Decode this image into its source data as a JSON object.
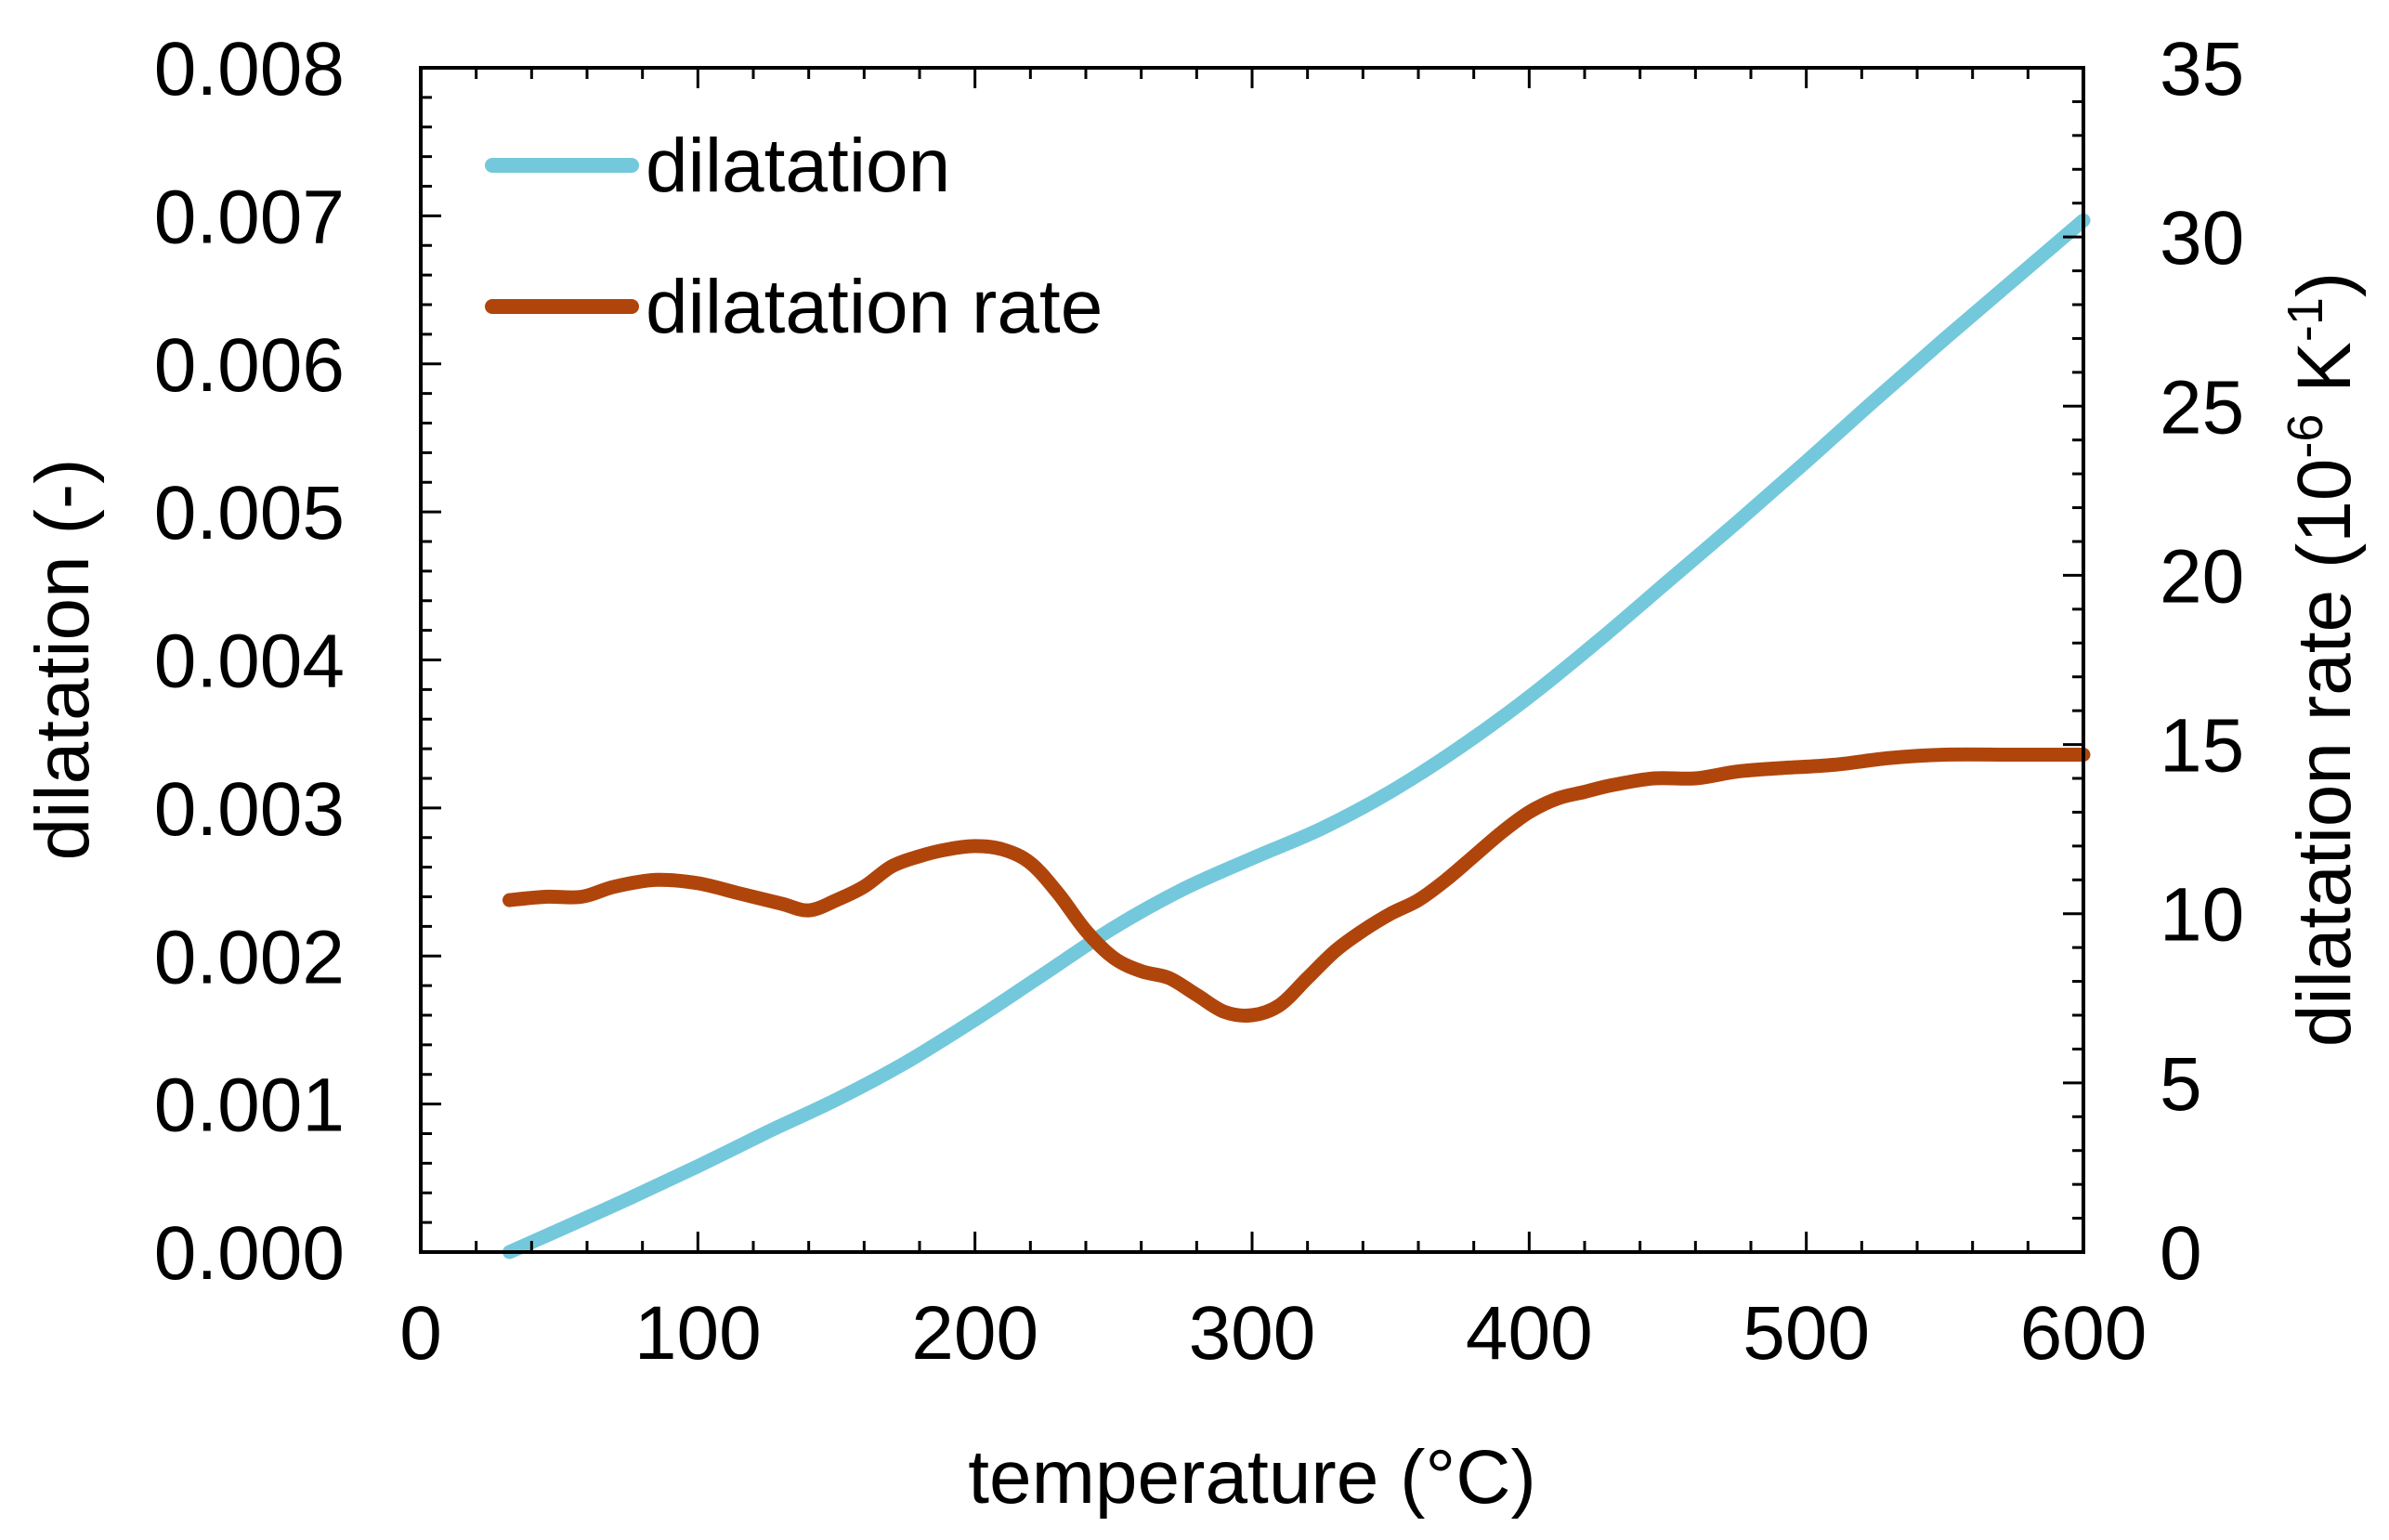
{
  "chart_data": {
    "type": "line",
    "title": "",
    "xlabel": "temperature (°C)",
    "ylabel_left": "dilatation (-)",
    "ylabel_right_base": "dilatation rate (10",
    "ylabel_right_sup1": "-6",
    "ylabel_right_mid": " K",
    "ylabel_right_sup2": "-1",
    "ylabel_right_end": ")",
    "xlim": [
      0,
      600
    ],
    "ylim_left": [
      0,
      0.008
    ],
    "ylim_right": [
      0,
      35
    ],
    "x_ticks": [
      0,
      100,
      200,
      300,
      400,
      500,
      600
    ],
    "x_tick_labels": [
      "0",
      "100",
      "200",
      "300",
      "400",
      "500",
      "600"
    ],
    "y_left_ticks": [
      0,
      0.001,
      0.002,
      0.003,
      0.004,
      0.005,
      0.006,
      0.007,
      0.008
    ],
    "y_left_tick_labels": [
      "0.000",
      "0.001",
      "0.002",
      "0.003",
      "0.004",
      "0.005",
      "0.006",
      "0.007",
      "0.008"
    ],
    "y_right_ticks": [
      0,
      5,
      10,
      15,
      20,
      25,
      30,
      35
    ],
    "y_right_tick_labels": [
      "0",
      "5",
      "10",
      "15",
      "20",
      "25",
      "30",
      "35"
    ],
    "grid": false,
    "legend_position": "top-left",
    "series": [
      {
        "name": "dilatation",
        "axis": "left",
        "color": "#74c8db",
        "x": [
          32,
          50,
          75,
          100,
          125,
          150,
          175,
          200,
          225,
          250,
          275,
          300,
          325,
          350,
          375,
          400,
          425,
          450,
          475,
          500,
          525,
          550,
          575,
          600
        ],
        "y": [
          0.0,
          0.00015,
          0.00036,
          0.00058,
          0.00081,
          0.00103,
          0.00128,
          0.00157,
          0.00188,
          0.00219,
          0.00245,
          0.00266,
          0.00286,
          0.00311,
          0.00341,
          0.00375,
          0.00413,
          0.00453,
          0.00493,
          0.00534,
          0.00576,
          0.00617,
          0.00657,
          0.00697
        ]
      },
      {
        "name": "dilatation rate",
        "axis": "right",
        "color": "#b0450c",
        "x": [
          32,
          45,
          58,
          70,
          85,
          100,
          115,
          130,
          140,
          150,
          160,
          170,
          180,
          190,
          200,
          210,
          220,
          230,
          240,
          250,
          260,
          270,
          280,
          290,
          300,
          310,
          320,
          330,
          340,
          350,
          360,
          370,
          380,
          390,
          400,
          410,
          420,
          430,
          445,
          460,
          475,
          490,
          510,
          530,
          550,
          575,
          600
        ],
        "y": [
          10.4,
          10.5,
          10.5,
          10.8,
          11.0,
          10.9,
          10.6,
          10.3,
          10.1,
          10.4,
          10.8,
          11.4,
          11.7,
          11.9,
          12.0,
          11.9,
          11.5,
          10.6,
          9.5,
          8.7,
          8.3,
          8.1,
          7.6,
          7.1,
          7.0,
          7.3,
          8.1,
          8.9,
          9.5,
          10.0,
          10.4,
          11.0,
          11.7,
          12.4,
          13.0,
          13.4,
          13.6,
          13.8,
          14.0,
          14.0,
          14.2,
          14.3,
          14.4,
          14.6,
          14.7,
          14.7,
          14.7
        ]
      }
    ]
  }
}
